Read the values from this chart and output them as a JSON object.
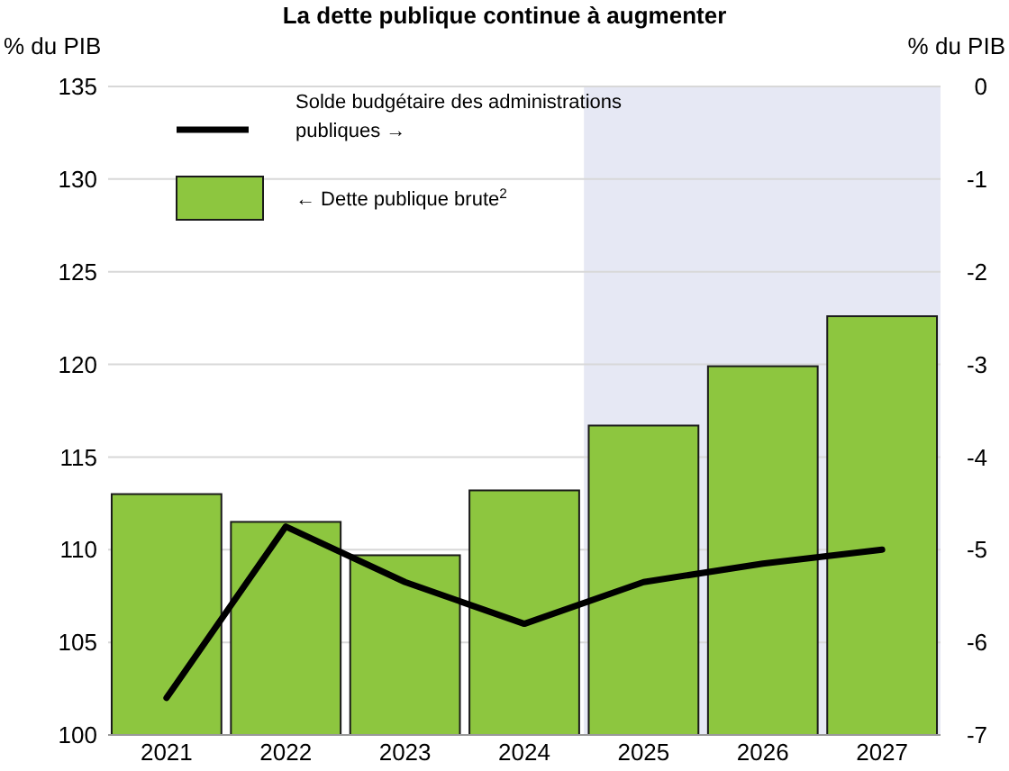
{
  "chart_data": {
    "type": "bar",
    "title": "La dette publique continue à augmenter",
    "ylabel": "% du PIB",
    "y2label": "% du PIB",
    "categories": [
      "2021",
      "2022",
      "2023",
      "2024",
      "2025",
      "2026",
      "2027"
    ],
    "series": [
      {
        "name": "← Dette publique brute$^{2}$",
        "color": "#8dc63f",
        "values": [
          113.0,
          111.5,
          109.7,
          113.2,
          116.7,
          119.9,
          122.6
        ]
      },
      {
        "name": "Solde budgétaire des administrations publiques →",
        "type": "line",
        "axis": "y2",
        "color": "#000000",
        "values": [
          -6.6,
          -4.75,
          -5.35,
          -5.8,
          -5.35,
          -5.15,
          -5.0
        ]
      }
    ],
    "ylim": [
      100,
      135
    ],
    "yticks": [
      100,
      105,
      110,
      115,
      120,
      125,
      130,
      135
    ],
    "y2lim": [
      -7,
      0
    ],
    "y2ticks": [
      -7,
      -6,
      -5,
      -4,
      -3,
      -2,
      -1,
      0
    ],
    "bands": [
      {
        "axis": "x",
        "from": "2025",
        "to": "2027",
        "color": "#e6e8f4"
      }
    ],
    "grid": "y",
    "legend": "top left"
  }
}
